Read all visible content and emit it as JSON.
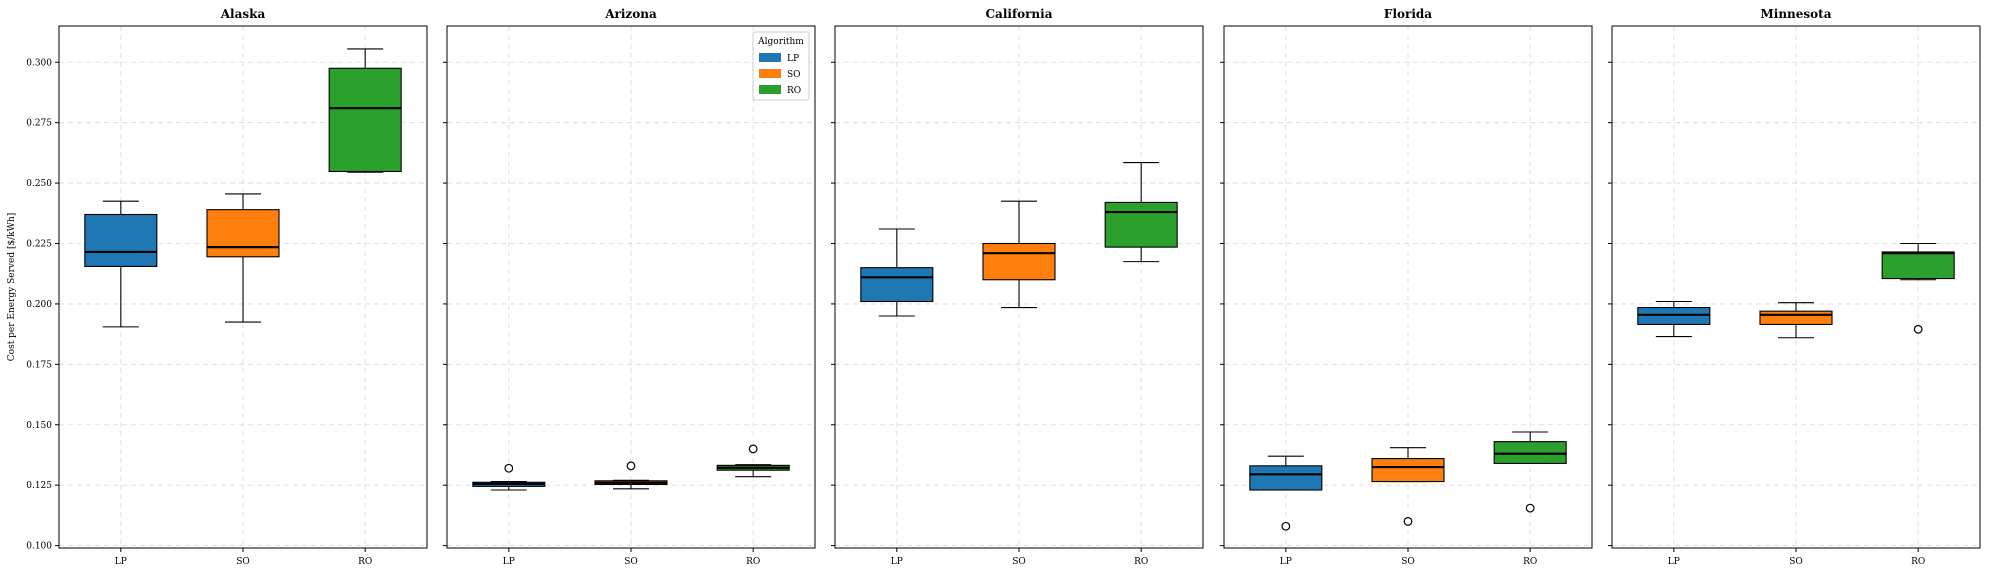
{
  "chart_data": {
    "type": "box",
    "ylabel": "Cost per Energy Served [$/kWh]",
    "ylim": [
      0.099,
      0.315
    ],
    "yticks": [
      0.1,
      0.125,
      0.15,
      0.175,
      0.2,
      0.225,
      0.25,
      0.275,
      0.3
    ],
    "ytick_labels": [
      "0.100",
      "0.125",
      "0.150",
      "0.175",
      "0.200",
      "0.225",
      "0.250",
      "0.275",
      "0.300"
    ],
    "grid": true,
    "shared_y": true,
    "categories": [
      "LP",
      "SO",
      "RO"
    ],
    "colors": {
      "LP": "#1f77b4",
      "SO": "#ff7f0e",
      "RO": "#2ca02c"
    },
    "legend": {
      "title": "Algorithm",
      "entries": [
        "LP",
        "SO",
        "RO"
      ],
      "panel": "Arizona",
      "placement": "top-right"
    },
    "panels": [
      {
        "title": "Alaska",
        "boxes": [
          {
            "name": "LP",
            "whisker_low": 0.1905,
            "q1": 0.2155,
            "median": 0.2215,
            "q3": 0.237,
            "whisker_high": 0.2425,
            "outliers": []
          },
          {
            "name": "SO",
            "whisker_low": 0.1925,
            "q1": 0.2195,
            "median": 0.2235,
            "q3": 0.239,
            "whisker_high": 0.2455,
            "outliers": []
          },
          {
            "name": "RO",
            "whisker_low": 0.2545,
            "q1": 0.2548,
            "median": 0.281,
            "q3": 0.2975,
            "whisker_high": 0.3055,
            "outliers": []
          }
        ]
      },
      {
        "title": "Arizona",
        "boxes": [
          {
            "name": "LP",
            "whisker_low": 0.123,
            "q1": 0.1245,
            "median": 0.1255,
            "q3": 0.1262,
            "whisker_high": 0.1265,
            "outliers": [
              0.132
            ]
          },
          {
            "name": "SO",
            "whisker_low": 0.1235,
            "q1": 0.1253,
            "median": 0.126,
            "q3": 0.1268,
            "whisker_high": 0.127,
            "outliers": [
              0.133
            ]
          },
          {
            "name": "RO",
            "whisker_low": 0.1285,
            "q1": 0.1312,
            "median": 0.1322,
            "q3": 0.1332,
            "whisker_high": 0.1335,
            "outliers": [
              0.14
            ]
          }
        ]
      },
      {
        "title": "California",
        "boxes": [
          {
            "name": "LP",
            "whisker_low": 0.195,
            "q1": 0.201,
            "median": 0.211,
            "q3": 0.215,
            "whisker_high": 0.231,
            "outliers": []
          },
          {
            "name": "SO",
            "whisker_low": 0.1985,
            "q1": 0.21,
            "median": 0.221,
            "q3": 0.225,
            "whisker_high": 0.2425,
            "outliers": []
          },
          {
            "name": "RO",
            "whisker_low": 0.2175,
            "q1": 0.2235,
            "median": 0.238,
            "q3": 0.242,
            "whisker_high": 0.2585,
            "outliers": []
          }
        ]
      },
      {
        "title": "Florida",
        "boxes": [
          {
            "name": "LP",
            "whisker_low": 0.123,
            "q1": 0.123,
            "median": 0.1295,
            "q3": 0.133,
            "whisker_high": 0.137,
            "outliers": [
              0.108
            ]
          },
          {
            "name": "SO",
            "whisker_low": 0.1265,
            "q1": 0.1265,
            "median": 0.1325,
            "q3": 0.136,
            "whisker_high": 0.1405,
            "outliers": [
              0.11
            ]
          },
          {
            "name": "RO",
            "whisker_low": 0.134,
            "q1": 0.134,
            "median": 0.138,
            "q3": 0.143,
            "whisker_high": 0.147,
            "outliers": [
              0.1155
            ]
          }
        ]
      },
      {
        "title": "Minnesota",
        "boxes": [
          {
            "name": "LP",
            "whisker_low": 0.1865,
            "q1": 0.1915,
            "median": 0.1955,
            "q3": 0.1985,
            "whisker_high": 0.201,
            "outliers": []
          },
          {
            "name": "SO",
            "whisker_low": 0.186,
            "q1": 0.1915,
            "median": 0.1955,
            "q3": 0.197,
            "whisker_high": 0.2005,
            "outliers": []
          },
          {
            "name": "RO",
            "whisker_low": 0.21,
            "q1": 0.2105,
            "median": 0.221,
            "q3": 0.2215,
            "whisker_high": 0.225,
            "outliers": [
              0.1895
            ]
          }
        ]
      }
    ]
  }
}
